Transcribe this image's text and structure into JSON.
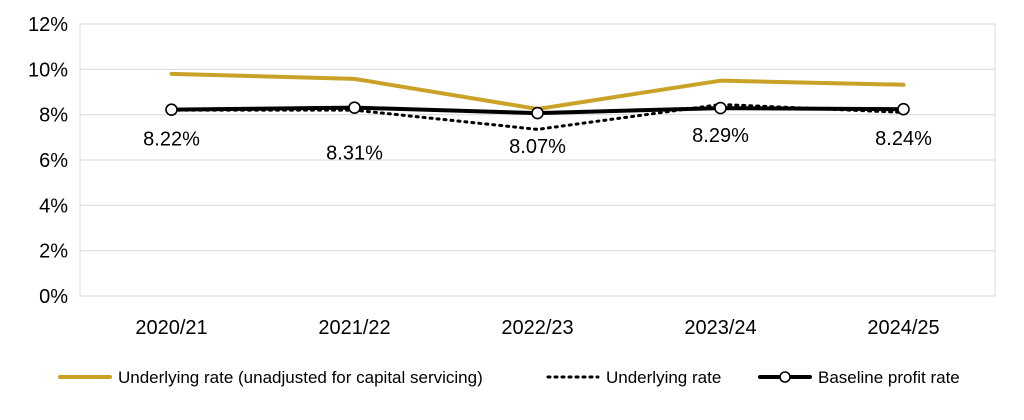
{
  "chart_data": {
    "type": "line",
    "categories": [
      "2020/21",
      "2021/22",
      "2022/23",
      "2023/24",
      "2024/25"
    ],
    "ylim": [
      0,
      12
    ],
    "y_ticks": [
      "0%",
      "2%",
      "4%",
      "6%",
      "8%",
      "10%",
      "12%"
    ],
    "y_tick_values": [
      0,
      2,
      4,
      6,
      8,
      10,
      12
    ],
    "grid": true,
    "legend_position": "bottom",
    "series": [
      {
        "name": "Underlying rate (unadjusted for capital servicing)",
        "values": [
          9.8,
          9.58,
          8.25,
          9.5,
          9.32
        ],
        "color": "#c9a227",
        "style": "solid"
      },
      {
        "name": "Underlying rate",
        "values": [
          8.2,
          8.2,
          7.35,
          8.45,
          8.1
        ],
        "color": "#000000",
        "style": "dotted"
      },
      {
        "name": "Baseline profit rate",
        "values": [
          8.22,
          8.31,
          8.07,
          8.29,
          8.24
        ],
        "color": "#000000",
        "style": "solid-markers",
        "data_labels": [
          "8.22%",
          "8.31%",
          "8.07%",
          "8.29%",
          "8.24%"
        ]
      }
    ]
  }
}
